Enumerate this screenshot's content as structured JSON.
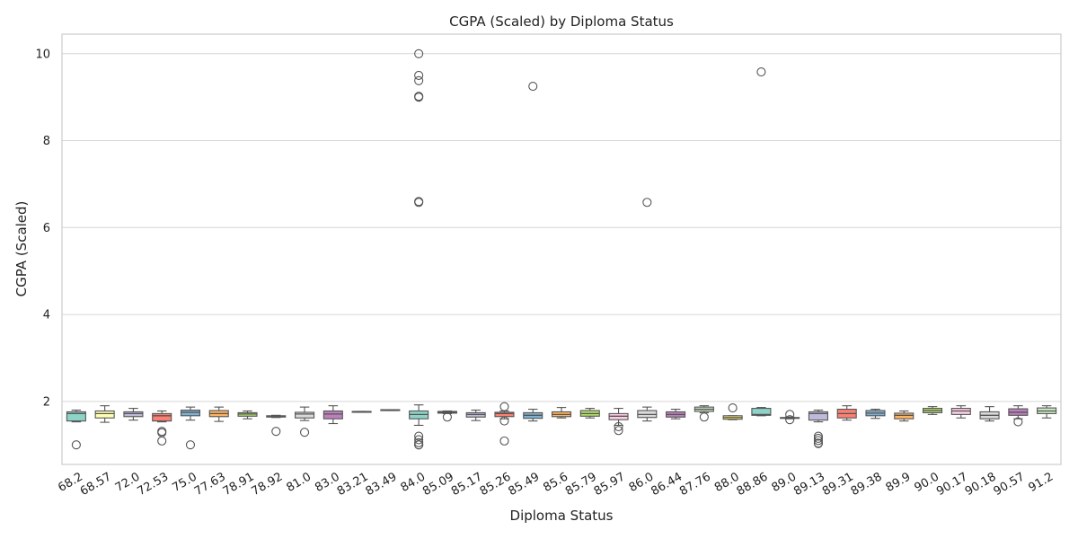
{
  "chart_data": {
    "type": "box",
    "title": "CGPA (Scaled) by Diploma Status",
    "xlabel": "Diploma Status",
    "ylabel": "CGPA (Scaled)",
    "ylim": [
      0.55,
      10.45
    ],
    "yticks": [
      2,
      4,
      6,
      8,
      10
    ],
    "grid": "horizontal",
    "categories": [
      "68.2",
      "68.57",
      "72.0",
      "72.53",
      "75.0",
      "77.63",
      "78.91",
      "78.92",
      "81.0",
      "83.0",
      "83.21",
      "83.49",
      "84.0",
      "85.09",
      "85.17",
      "85.26",
      "85.49",
      "85.6",
      "85.79",
      "85.97",
      "86.0",
      "86.44",
      "87.76",
      "88.0",
      "88.86",
      "89.0",
      "89.13",
      "89.31",
      "89.38",
      "89.9",
      "90.0",
      "90.17",
      "90.18",
      "90.57",
      "91.2"
    ],
    "boxes": [
      {
        "cat": "68.2",
        "whislo": 1.53,
        "q1": 1.55,
        "med": 1.72,
        "q3": 1.76,
        "whishi": 1.8,
        "fliers": [
          1.0
        ],
        "color": "#8dd3c7"
      },
      {
        "cat": "68.57",
        "whislo": 1.52,
        "q1": 1.62,
        "med": 1.72,
        "q3": 1.78,
        "whishi": 1.9,
        "fliers": [],
        "color": "#ffffb3"
      },
      {
        "cat": "72.0",
        "whislo": 1.57,
        "q1": 1.65,
        "med": 1.72,
        "q3": 1.76,
        "whishi": 1.84,
        "fliers": [],
        "color": "#bebada"
      },
      {
        "cat": "72.53",
        "whislo": 1.53,
        "q1": 1.55,
        "med": 1.67,
        "q3": 1.72,
        "whishi": 1.78,
        "fliers": [
          1.31,
          1.28,
          1.09
        ],
        "color": "#fb8072"
      },
      {
        "cat": "75.0",
        "whislo": 1.57,
        "q1": 1.67,
        "med": 1.75,
        "q3": 1.8,
        "whishi": 1.87,
        "fliers": [
          1.0
        ],
        "color": "#80b1d3"
      },
      {
        "cat": "77.63",
        "whislo": 1.54,
        "q1": 1.65,
        "med": 1.72,
        "q3": 1.79,
        "whishi": 1.87,
        "fliers": [],
        "color": "#fdb462"
      },
      {
        "cat": "78.91",
        "whislo": 1.6,
        "q1": 1.66,
        "med": 1.71,
        "q3": 1.74,
        "whishi": 1.78,
        "fliers": [],
        "color": "#b3de69"
      },
      {
        "cat": "78.92",
        "whislo": 1.63,
        "q1": 1.64,
        "med": 1.65,
        "q3": 1.67,
        "whishi": 1.68,
        "fliers": [
          1.31
        ],
        "color": "#fccde5"
      },
      {
        "cat": "81.0",
        "whislo": 1.56,
        "q1": 1.62,
        "med": 1.71,
        "q3": 1.75,
        "whishi": 1.87,
        "fliers": [
          1.29
        ],
        "color": "#d9d9d9"
      },
      {
        "cat": "83.0",
        "whislo": 1.49,
        "q1": 1.6,
        "med": 1.71,
        "q3": 1.78,
        "whishi": 1.9,
        "fliers": [],
        "color": "#bc80bd"
      },
      {
        "cat": "83.21",
        "whislo": 1.75,
        "q1": 1.75,
        "med": 1.76,
        "q3": 1.77,
        "whishi": 1.77,
        "fliers": [],
        "color": "#ccebc5"
      },
      {
        "cat": "83.49",
        "whislo": 1.79,
        "q1": 1.79,
        "med": 1.8,
        "q3": 1.81,
        "whishi": 1.81,
        "fliers": [],
        "color": "#ffed6f"
      },
      {
        "cat": "84.0",
        "whislo": 1.45,
        "q1": 1.6,
        "med": 1.7,
        "q3": 1.78,
        "whishi": 1.92,
        "fliers": [
          10.0,
          9.5,
          9.38,
          9.02,
          9.0,
          6.6,
          6.58,
          1.2,
          1.12,
          1.05,
          1.0,
          1.0
        ],
        "color": "#8dd3c7"
      },
      {
        "cat": "85.09",
        "whislo": 1.72,
        "q1": 1.73,
        "med": 1.75,
        "q3": 1.77,
        "whishi": 1.78,
        "fliers": [
          1.64
        ],
        "color": "#ffffb3"
      },
      {
        "cat": "85.17",
        "whislo": 1.56,
        "q1": 1.64,
        "med": 1.7,
        "q3": 1.74,
        "whishi": 1.8,
        "fliers": [],
        "color": "#bebada"
      },
      {
        "cat": "85.26",
        "whislo": 1.6,
        "q1": 1.65,
        "med": 1.72,
        "q3": 1.75,
        "whishi": 1.78,
        "fliers": [
          1.88,
          1.55,
          1.09
        ],
        "color": "#fb8072"
      },
      {
        "cat": "85.49",
        "whislo": 1.55,
        "q1": 1.61,
        "med": 1.68,
        "q3": 1.74,
        "whishi": 1.82,
        "fliers": [
          9.25
        ],
        "color": "#80b1d3"
      },
      {
        "cat": "85.6",
        "whislo": 1.62,
        "q1": 1.65,
        "med": 1.7,
        "q3": 1.76,
        "whishi": 1.86,
        "fliers": [],
        "color": "#fdb462"
      },
      {
        "cat": "85.79",
        "whislo": 1.62,
        "q1": 1.66,
        "med": 1.72,
        "q3": 1.79,
        "whishi": 1.84,
        "fliers": [],
        "color": "#b3de69"
      },
      {
        "cat": "85.97",
        "whislo": 1.45,
        "q1": 1.58,
        "med": 1.66,
        "q3": 1.72,
        "whishi": 1.84,
        "fliers": [
          1.42,
          1.33
        ],
        "color": "#fccde5"
      },
      {
        "cat": "86.0",
        "whislo": 1.55,
        "q1": 1.63,
        "med": 1.7,
        "q3": 1.79,
        "whishi": 1.87,
        "fliers": [
          6.58
        ],
        "color": "#d9d9d9"
      },
      {
        "cat": "86.44",
        "whislo": 1.6,
        "q1": 1.64,
        "med": 1.7,
        "q3": 1.76,
        "whishi": 1.82,
        "fliers": [],
        "color": "#bc80bd"
      },
      {
        "cat": "87.76",
        "whislo": 1.74,
        "q1": 1.77,
        "med": 1.82,
        "q3": 1.87,
        "whishi": 1.9,
        "fliers": [
          1.64
        ],
        "color": "#ccebc5"
      },
      {
        "cat": "88.0",
        "whislo": 1.58,
        "q1": 1.59,
        "med": 1.63,
        "q3": 1.67,
        "whishi": 1.67,
        "fliers": [
          1.85
        ],
        "color": "#ffed6f"
      },
      {
        "cat": "88.86",
        "whislo": 1.67,
        "q1": 1.68,
        "med": 1.7,
        "q3": 1.84,
        "whishi": 1.86,
        "fliers": [
          9.58
        ],
        "color": "#8dd3c7"
      },
      {
        "cat": "89.0",
        "whislo": 1.6,
        "q1": 1.61,
        "med": 1.62,
        "q3": 1.63,
        "whishi": 1.64,
        "fliers": [
          1.7,
          1.58
        ],
        "color": "#ffffb3"
      },
      {
        "cat": "89.13",
        "whislo": 1.53,
        "q1": 1.57,
        "med": 1.72,
        "q3": 1.76,
        "whishi": 1.8,
        "fliers": [
          1.2,
          1.15,
          1.1,
          1.04,
          1.03
        ],
        "color": "#bebada"
      },
      {
        "cat": "89.31",
        "whislo": 1.57,
        "q1": 1.62,
        "med": 1.72,
        "q3": 1.82,
        "whishi": 1.9,
        "fliers": [],
        "color": "#fb8072"
      },
      {
        "cat": "89.38",
        "whislo": 1.61,
        "q1": 1.67,
        "med": 1.73,
        "q3": 1.79,
        "whishi": 1.82,
        "fliers": [],
        "color": "#80b1d3"
      },
      {
        "cat": "89.9",
        "whislo": 1.55,
        "q1": 1.6,
        "med": 1.68,
        "q3": 1.73,
        "whishi": 1.78,
        "fliers": [],
        "color": "#fdb462"
      },
      {
        "cat": "90.0",
        "whislo": 1.7,
        "q1": 1.74,
        "med": 1.79,
        "q3": 1.84,
        "whishi": 1.88,
        "fliers": [],
        "color": "#b3de69"
      },
      {
        "cat": "90.17",
        "whislo": 1.62,
        "q1": 1.7,
        "med": 1.78,
        "q3": 1.84,
        "whishi": 1.9,
        "fliers": [],
        "color": "#fccde5"
      },
      {
        "cat": "90.18",
        "whislo": 1.55,
        "q1": 1.6,
        "med": 1.68,
        "q3": 1.76,
        "whishi": 1.88,
        "fliers": [],
        "color": "#d9d9d9"
      },
      {
        "cat": "90.57",
        "whislo": 1.6,
        "q1": 1.68,
        "med": 1.75,
        "q3": 1.83,
        "whishi": 1.9,
        "fliers": [
          1.53
        ],
        "color": "#bc80bd"
      },
      {
        "cat": "91.2",
        "whislo": 1.62,
        "q1": 1.72,
        "med": 1.78,
        "q3": 1.85,
        "whishi": 1.9,
        "fliers": [],
        "color": "#ccebc5"
      }
    ]
  }
}
